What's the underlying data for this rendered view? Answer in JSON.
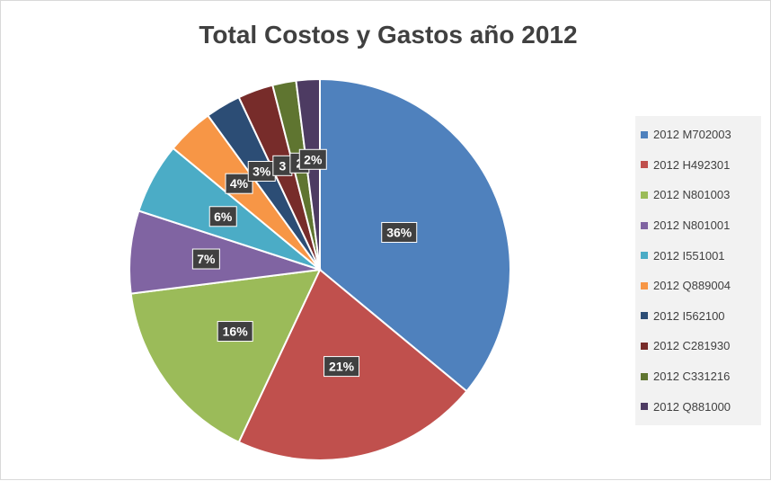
{
  "chart_data": {
    "type": "pie",
    "title": "Total Costos y Gastos año 2012",
    "labels": [
      "2012 M702003",
      "2012 H492301",
      "2012 N801003",
      "2012 N801001",
      "2012 I551001",
      "2012 Q889004",
      "2012 I562100",
      "2012 C281930",
      "2012 C331216",
      "2012 Q881000"
    ],
    "values": [
      36,
      21,
      16,
      7,
      6,
      4,
      3,
      3,
      2,
      2
    ],
    "data_labels": [
      "36%",
      "21%",
      "16%",
      "7%",
      "6%",
      "4%",
      "3%",
      "3",
      "2",
      "2%"
    ],
    "colors": [
      "#4f81bd",
      "#c0504d",
      "#9bbb59",
      "#8064a2",
      "#4bacc6",
      "#f79646",
      "#2c4d75",
      "#772c2a",
      "#5f7530",
      "#4d3b62"
    ],
    "legend_position": "right"
  }
}
